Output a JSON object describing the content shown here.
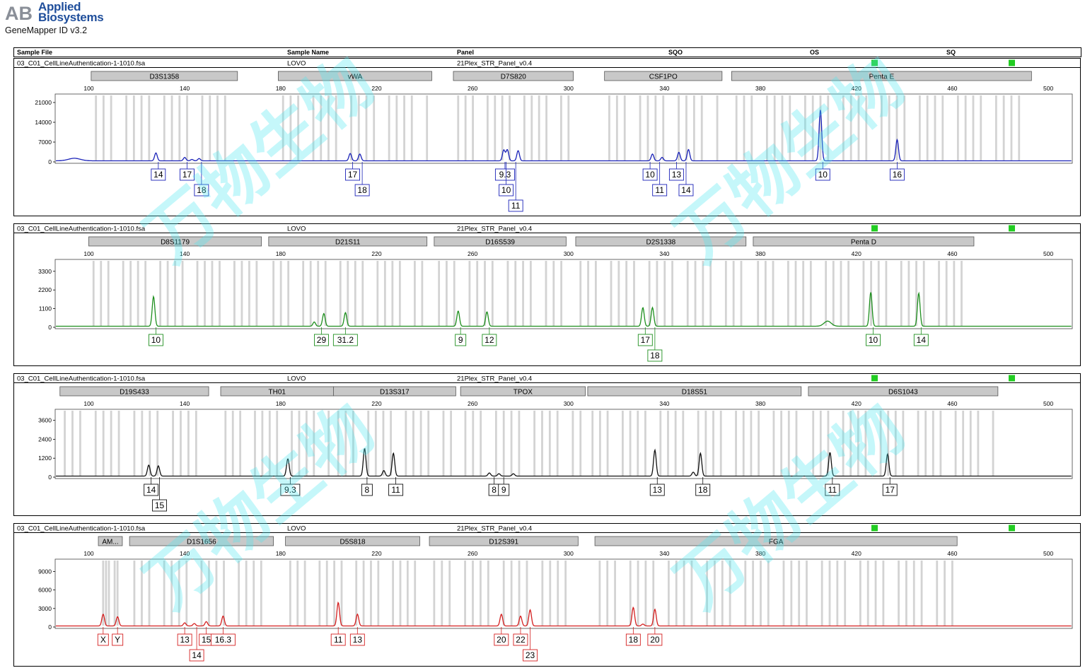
{
  "header": {
    "brand_line1": "Applied",
    "brand_line2": "Biosystems",
    "app_name": "GeneMapper ID v3.2"
  },
  "columns": [
    "Sample File",
    "Sample Name",
    "Panel",
    "SQO",
    "OS",
    "SQ"
  ],
  "watermark": "万物生物",
  "colors": {
    "status_green": "#22cc22",
    "marker_bar": "#c8c8c8",
    "bin": "#d3d3d3"
  },
  "x_axis": {
    "ticks": [
      100,
      140,
      180,
      220,
      260,
      300,
      340,
      380,
      420,
      460,
      500
    ],
    "range": [
      86,
      510
    ]
  },
  "chart_data": [
    {
      "type": "line",
      "sample_file": "03_C01_CellLineAuthentication-1-1010.fsa",
      "sample_name": "LOVO",
      "panel": "21Plex_STR_Panel_v0.4",
      "color": "#1a22b8",
      "yticks": [
        0,
        7000,
        14000,
        21000
      ],
      "ymax": 24000,
      "markers": [
        {
          "name": "D3S1358",
          "start": 101,
          "end": 162
        },
        {
          "name": "vWA",
          "start": 179,
          "end": 243
        },
        {
          "name": "D7S820",
          "start": 252,
          "end": 302
        },
        {
          "name": "CSF1PO",
          "start": 315,
          "end": 364
        },
        {
          "name": "Penta E",
          "start": 368,
          "end": 493
        }
      ],
      "peaks": [
        {
          "x": 94,
          "y": 900,
          "w": 2.5
        },
        {
          "x": 128,
          "y": 2800
        },
        {
          "x": 140,
          "y": 1200
        },
        {
          "x": 143,
          "y": 500
        },
        {
          "x": 146,
          "y": 800
        },
        {
          "x": 209,
          "y": 2600
        },
        {
          "x": 213,
          "y": 2400
        },
        {
          "x": 273,
          "y": 3800
        },
        {
          "x": 274.5,
          "y": 3900
        },
        {
          "x": 279,
          "y": 3600
        },
        {
          "x": 335,
          "y": 2400
        },
        {
          "x": 339,
          "y": 1200
        },
        {
          "x": 346,
          "y": 3000
        },
        {
          "x": 350,
          "y": 4000
        },
        {
          "x": 405,
          "y": 18000
        },
        {
          "x": 437,
          "y": 7500
        }
      ],
      "labels": [
        {
          "text": "14",
          "x": 129,
          "row": 0
        },
        {
          "text": "17",
          "x": 141,
          "row": 0
        },
        {
          "text": "18",
          "x": 147,
          "row": 1
        },
        {
          "text": "17",
          "x": 210,
          "row": 0
        },
        {
          "text": "18",
          "x": 214,
          "row": 1
        },
        {
          "text": "9.3",
          "x": 273.5,
          "row": 0
        },
        {
          "text": "10",
          "x": 274,
          "row": 1
        },
        {
          "text": "11",
          "x": 278,
          "row": 2
        },
        {
          "text": "10",
          "x": 334,
          "row": 0
        },
        {
          "text": "11",
          "x": 338,
          "row": 1
        },
        {
          "text": "13",
          "x": 345,
          "row": 0
        },
        {
          "text": "14",
          "x": 349,
          "row": 1
        },
        {
          "text": "10",
          "x": 406,
          "row": 0
        },
        {
          "text": "16",
          "x": 437,
          "row": 0
        }
      ]
    },
    {
      "type": "line",
      "sample_file": "03_C01_CellLineAuthentication-1-1010.fsa",
      "sample_name": "LOVO",
      "panel": "21Plex_STR_Panel_v0.4",
      "color": "#1e8f1e",
      "yticks": [
        0,
        1100,
        2200,
        3300
      ],
      "ymax": 4000,
      "markers": [
        {
          "name": "D8S1179",
          "start": 100,
          "end": 172
        },
        {
          "name": "D21S11",
          "start": 175,
          "end": 241
        },
        {
          "name": "D16S539",
          "start": 244,
          "end": 299
        },
        {
          "name": "D2S1338",
          "start": 303,
          "end": 374
        },
        {
          "name": "Penta D",
          "start": 377,
          "end": 469
        }
      ],
      "peaks": [
        {
          "x": 127,
          "y": 1750
        },
        {
          "x": 194,
          "y": 250
        },
        {
          "x": 198,
          "y": 750
        },
        {
          "x": 207,
          "y": 800
        },
        {
          "x": 254,
          "y": 900
        },
        {
          "x": 266,
          "y": 850
        },
        {
          "x": 331,
          "y": 1100
        },
        {
          "x": 335,
          "y": 1100
        },
        {
          "x": 408,
          "y": 300,
          "w": 1.5
        },
        {
          "x": 426,
          "y": 2000
        },
        {
          "x": 446,
          "y": 1950
        }
      ],
      "labels": [
        {
          "text": "10",
          "x": 128,
          "row": 0
        },
        {
          "text": "29",
          "x": 197,
          "row": 0
        },
        {
          "text": "31.2",
          "x": 207,
          "row": 0
        },
        {
          "text": "9",
          "x": 255,
          "row": 0
        },
        {
          "text": "12",
          "x": 267,
          "row": 0
        },
        {
          "text": "17",
          "x": 332,
          "row": 0
        },
        {
          "text": "18",
          "x": 336,
          "row": 1
        },
        {
          "text": "10",
          "x": 427,
          "row": 0
        },
        {
          "text": "14",
          "x": 447,
          "row": 0
        }
      ]
    },
    {
      "type": "line",
      "sample_file": "03_C01_CellLineAuthentication-1-1010.fsa",
      "sample_name": "LOVO",
      "panel": "21Plex_STR_Panel_v0.4",
      "color": "#111111",
      "yticks": [
        0,
        1200,
        2400,
        3600
      ],
      "ymax": 4300,
      "markers": [
        {
          "name": "D19S433",
          "start": 88,
          "end": 150
        },
        {
          "name": "TH01",
          "start": 155,
          "end": 202
        },
        {
          "name": "D13S317",
          "start": 202,
          "end": 253
        },
        {
          "name": "TPOX",
          "start": 255,
          "end": 307
        },
        {
          "name": "D18S51",
          "start": 308,
          "end": 397
        },
        {
          "name": "D6S1043",
          "start": 400,
          "end": 479
        }
      ],
      "peaks": [
        {
          "x": 125,
          "y": 700
        },
        {
          "x": 129,
          "y": 650
        },
        {
          "x": 183,
          "y": 1100
        },
        {
          "x": 215,
          "y": 1750
        },
        {
          "x": 223,
          "y": 350
        },
        {
          "x": 227,
          "y": 1450
        },
        {
          "x": 267,
          "y": 200
        },
        {
          "x": 271,
          "y": 150
        },
        {
          "x": 277,
          "y": 150
        },
        {
          "x": 336,
          "y": 1650
        },
        {
          "x": 352,
          "y": 250
        },
        {
          "x": 355,
          "y": 1450
        },
        {
          "x": 409,
          "y": 1500
        },
        {
          "x": 433,
          "y": 1400
        }
      ],
      "labels": [
        {
          "text": "14",
          "x": 126,
          "row": 0
        },
        {
          "text": "15",
          "x": 129.5,
          "row": 1
        },
        {
          "text": "9.3",
          "x": 184,
          "row": 0
        },
        {
          "text": "8",
          "x": 216,
          "row": 0
        },
        {
          "text": "11",
          "x": 228,
          "row": 0
        },
        {
          "text": "8",
          "x": 269,
          "row": 0
        },
        {
          "text": "9",
          "x": 273,
          "row": 0
        },
        {
          "text": "13",
          "x": 337,
          "row": 0
        },
        {
          "text": "18",
          "x": 356,
          "row": 0
        },
        {
          "text": "11",
          "x": 410,
          "row": 0
        },
        {
          "text": "17",
          "x": 434,
          "row": 0
        }
      ]
    },
    {
      "type": "line",
      "sample_file": "03_C01_CellLineAuthentication-1-1010.fsa",
      "sample_name": "LOVO",
      "panel": "21Plex_STR_Panel_v0.4",
      "color": "#d42020",
      "yticks": [
        0,
        3000,
        6000,
        9000
      ],
      "ymax": 11000,
      "markers": [
        {
          "name": "AM...",
          "start": 104,
          "end": 114
        },
        {
          "name": "D1S1656",
          "start": 117,
          "end": 177
        },
        {
          "name": "D5S818",
          "start": 182,
          "end": 238
        },
        {
          "name": "D12S391",
          "start": 242,
          "end": 304
        },
        {
          "name": "FGA",
          "start": 311,
          "end": 462
        }
      ],
      "peaks": [
        {
          "x": 106,
          "y": 1900
        },
        {
          "x": 112,
          "y": 1500
        },
        {
          "x": 140,
          "y": 500
        },
        {
          "x": 144,
          "y": 400
        },
        {
          "x": 149,
          "y": 700
        },
        {
          "x": 156,
          "y": 1600
        },
        {
          "x": 204,
          "y": 3800
        },
        {
          "x": 212,
          "y": 1900
        },
        {
          "x": 272,
          "y": 1900
        },
        {
          "x": 280,
          "y": 1600
        },
        {
          "x": 284,
          "y": 2600
        },
        {
          "x": 327,
          "y": 3000
        },
        {
          "x": 331,
          "y": 300
        },
        {
          "x": 336,
          "y": 2700
        }
      ],
      "labels": [
        {
          "text": "X",
          "x": 106,
          "row": 0
        },
        {
          "text": "Y",
          "x": 112,
          "row": 0
        },
        {
          "text": "13",
          "x": 140,
          "row": 0
        },
        {
          "text": "14",
          "x": 145,
          "row": 1
        },
        {
          "text": "15",
          "x": 149,
          "row": 0
        },
        {
          "text": "16.3",
          "x": 156,
          "row": 0
        },
        {
          "text": "11",
          "x": 204,
          "row": 0
        },
        {
          "text": "13",
          "x": 212,
          "row": 0
        },
        {
          "text": "20",
          "x": 272,
          "row": 0
        },
        {
          "text": "22",
          "x": 280,
          "row": 0
        },
        {
          "text": "23",
          "x": 284,
          "row": 1
        },
        {
          "text": "18",
          "x": 327,
          "row": 0
        },
        {
          "text": "20",
          "x": 336,
          "row": 0
        }
      ]
    }
  ]
}
